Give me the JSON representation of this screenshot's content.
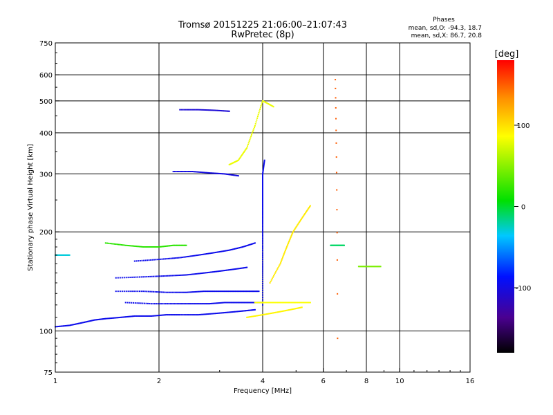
{
  "chart_data": {
    "type": "scatter",
    "title": "Tromsø 20151225 21:06:00–21:07:43",
    "subtitle": "RwPretec (8p)",
    "xlabel": "Frequency [MHz]",
    "ylabel": "Stationary phase Virtual Height [km]",
    "xscale": "log",
    "yscale": "log",
    "xlim": [
      1,
      16
    ],
    "ylim": [
      75,
      750
    ],
    "xticks": [
      1,
      2,
      4,
      6,
      8,
      10,
      16
    ],
    "xtick_labels": [
      "1",
      "2",
      "4",
      "6",
      "8",
      "10",
      "16"
    ],
    "yticks": [
      75,
      100,
      200,
      300,
      400,
      500,
      600,
      750
    ],
    "ytick_labels": [
      "75",
      "100",
      "200",
      "300",
      "400",
      "500",
      "600",
      "750"
    ],
    "grid": true,
    "stats": {
      "heading": "Phases",
      "line_o": "mean, sd,O: -94.3, 18.7",
      "line_x": "mean, sd,X: 86.7, 20.8"
    },
    "colorbar": {
      "title": "[deg]",
      "range": [
        -180,
        180
      ],
      "ticks": [
        100,
        0,
        -100
      ],
      "tick_labels": [
        "100",
        "0",
        "-100"
      ],
      "colormap": "rainbow (black-violet-blue-cyan-green-yellow-red)"
    },
    "traces": [
      {
        "phase": -95,
        "points": [
          [
            1.0,
            103
          ],
          [
            1.1,
            104
          ],
          [
            1.2,
            106
          ],
          [
            1.3,
            108
          ],
          [
            1.4,
            109
          ],
          [
            1.55,
            110
          ],
          [
            1.7,
            111
          ],
          [
            1.9,
            111
          ],
          [
            2.1,
            112
          ],
          [
            2.3,
            112
          ],
          [
            2.6,
            112
          ],
          [
            2.9,
            113
          ],
          [
            3.2,
            114
          ],
          [
            3.5,
            115
          ],
          [
            3.8,
            116
          ]
        ]
      },
      {
        "phase": -95,
        "points": [
          [
            1.5,
            132
          ],
          [
            1.8,
            132
          ],
          [
            2.1,
            131
          ],
          [
            2.4,
            131
          ],
          [
            2.7,
            132
          ],
          [
            3.0,
            132
          ],
          [
            3.3,
            132
          ],
          [
            3.6,
            132
          ],
          [
            3.9,
            132
          ]
        ]
      },
      {
        "phase": -95,
        "points": [
          [
            1.6,
            122
          ],
          [
            1.9,
            121
          ],
          [
            2.2,
            121
          ],
          [
            2.5,
            121
          ],
          [
            2.8,
            121
          ],
          [
            3.1,
            122
          ],
          [
            3.4,
            122
          ],
          [
            3.7,
            122
          ],
          [
            4.0,
            122
          ]
        ]
      },
      {
        "phase": -95,
        "points": [
          [
            1.5,
            145
          ],
          [
            1.8,
            146
          ],
          [
            2.1,
            147
          ],
          [
            2.4,
            148
          ],
          [
            2.7,
            150
          ],
          [
            3.0,
            152
          ],
          [
            3.3,
            154
          ],
          [
            3.6,
            156
          ]
        ]
      },
      {
        "phase": -95,
        "points": [
          [
            1.7,
            163
          ],
          [
            2.0,
            165
          ],
          [
            2.3,
            167
          ],
          [
            2.6,
            170
          ],
          [
            2.9,
            173
          ],
          [
            3.2,
            176
          ],
          [
            3.5,
            180
          ],
          [
            3.8,
            185
          ]
        ]
      },
      {
        "phase": -100,
        "points": [
          [
            2.2,
            305
          ],
          [
            2.5,
            305
          ],
          [
            2.8,
            302
          ],
          [
            3.1,
            300
          ],
          [
            3.4,
            296
          ]
        ]
      },
      {
        "phase": -105,
        "points": [
          [
            2.3,
            470
          ],
          [
            2.6,
            470
          ],
          [
            2.9,
            468
          ],
          [
            3.2,
            465
          ]
        ]
      },
      {
        "phase": -95,
        "points": [
          [
            4.0,
            120
          ],
          [
            4.0,
            150
          ],
          [
            4.0,
            180
          ],
          [
            4.0,
            210
          ],
          [
            4.0,
            240
          ],
          [
            4.0,
            270
          ],
          [
            4.0,
            300
          ],
          [
            4.05,
            330
          ]
        ]
      },
      {
        "phase": 85,
        "points": [
          [
            3.8,
            122
          ],
          [
            4.2,
            122
          ],
          [
            4.6,
            122
          ],
          [
            5.0,
            122
          ],
          [
            5.5,
            122
          ]
        ]
      },
      {
        "phase": 90,
        "points": [
          [
            3.6,
            110
          ],
          [
            4.0,
            112
          ],
          [
            4.4,
            114
          ],
          [
            4.8,
            116
          ],
          [
            5.2,
            118
          ]
        ]
      },
      {
        "phase": 95,
        "points": [
          [
            4.2,
            140
          ],
          [
            4.5,
            160
          ],
          [
            4.7,
            180
          ],
          [
            4.9,
            200
          ],
          [
            5.2,
            220
          ],
          [
            5.5,
            240
          ]
        ]
      },
      {
        "phase": 80,
        "points": [
          [
            3.2,
            320
          ],
          [
            3.4,
            330
          ],
          [
            3.6,
            360
          ],
          [
            3.8,
            420
          ],
          [
            4.0,
            500
          ],
          [
            4.3,
            480
          ]
        ]
      },
      {
        "phase": 20,
        "points": [
          [
            1.4,
            185
          ],
          [
            1.6,
            182
          ],
          [
            1.8,
            180
          ],
          [
            2.0,
            180
          ],
          [
            2.2,
            182
          ],
          [
            2.4,
            182
          ]
        ]
      },
      {
        "phase": -10,
        "points": [
          [
            6.3,
            182
          ],
          [
            6.6,
            182
          ],
          [
            6.9,
            182
          ]
        ]
      },
      {
        "phase": -30,
        "points": [
          [
            1.0,
            170
          ],
          [
            1.05,
            170
          ],
          [
            1.1,
            170
          ]
        ]
      },
      {
        "phase": 45,
        "points": [
          [
            7.6,
            157
          ],
          [
            8.2,
            157
          ],
          [
            8.8,
            157
          ]
        ]
      },
      {
        "phase": 150,
        "points": [
          [
            6.5,
            580
          ],
          [
            6.6,
            95
          ]
        ]
      }
    ]
  }
}
